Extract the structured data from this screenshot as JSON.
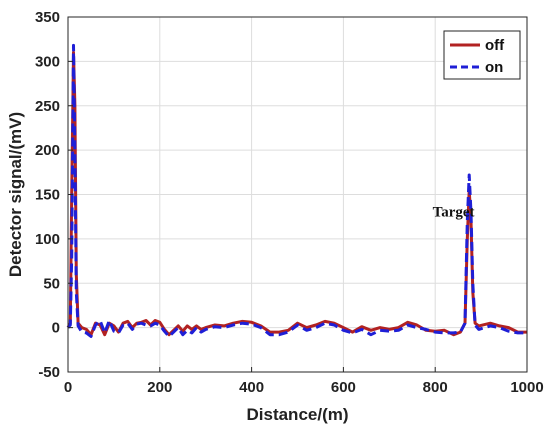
{
  "chart_data": {
    "type": "line",
    "title": "",
    "xlabel": "Distance/(m)",
    "ylabel": "Detector signal/(mV)",
    "xlim": [
      0,
      1000
    ],
    "ylim": [
      -50,
      350
    ],
    "xticks": [
      0,
      200,
      400,
      600,
      800,
      1000
    ],
    "yticks": [
      -50,
      0,
      50,
      100,
      150,
      200,
      250,
      300,
      350
    ],
    "grid": true,
    "legend_position": "top-right",
    "series": [
      {
        "name": "off",
        "color": "#b22222",
        "style": "solid",
        "points": [
          [
            0,
            0
          ],
          [
            5,
            5
          ],
          [
            8,
            150
          ],
          [
            12,
            310
          ],
          [
            15,
            250
          ],
          [
            18,
            60
          ],
          [
            22,
            5
          ],
          [
            30,
            0
          ],
          [
            40,
            -2
          ],
          [
            50,
            -8
          ],
          [
            60,
            5
          ],
          [
            70,
            3
          ],
          [
            80,
            -8
          ],
          [
            90,
            5
          ],
          [
            100,
            2
          ],
          [
            110,
            -5
          ],
          [
            120,
            5
          ],
          [
            130,
            7
          ],
          [
            140,
            0
          ],
          [
            150,
            5
          ],
          [
            160,
            6
          ],
          [
            170,
            8
          ],
          [
            180,
            3
          ],
          [
            190,
            8
          ],
          [
            200,
            6
          ],
          [
            210,
            -2
          ],
          [
            220,
            -8
          ],
          [
            230,
            -3
          ],
          [
            240,
            2
          ],
          [
            250,
            -4
          ],
          [
            260,
            2
          ],
          [
            270,
            -2
          ],
          [
            280,
            2
          ],
          [
            290,
            -2
          ],
          [
            300,
            0
          ],
          [
            320,
            3
          ],
          [
            340,
            2
          ],
          [
            360,
            5
          ],
          [
            380,
            7
          ],
          [
            400,
            6
          ],
          [
            420,
            2
          ],
          [
            440,
            -5
          ],
          [
            460,
            -5
          ],
          [
            480,
            -3
          ],
          [
            500,
            5
          ],
          [
            520,
            0
          ],
          [
            540,
            3
          ],
          [
            560,
            7
          ],
          [
            580,
            5
          ],
          [
            600,
            0
          ],
          [
            620,
            -5
          ],
          [
            640,
            1
          ],
          [
            660,
            -3
          ],
          [
            680,
            0
          ],
          [
            700,
            -2
          ],
          [
            720,
            0
          ],
          [
            740,
            6
          ],
          [
            760,
            3
          ],
          [
            780,
            -3
          ],
          [
            800,
            -4
          ],
          [
            820,
            -3
          ],
          [
            840,
            -8
          ],
          [
            855,
            -5
          ],
          [
            865,
            5
          ],
          [
            870,
            100
          ],
          [
            874,
            155
          ],
          [
            878,
            120
          ],
          [
            882,
            40
          ],
          [
            887,
            5
          ],
          [
            895,
            2
          ],
          [
            920,
            5
          ],
          [
            940,
            2
          ],
          [
            960,
            0
          ],
          [
            980,
            -5
          ],
          [
            1000,
            -5
          ]
        ]
      },
      {
        "name": "on",
        "color": "#1f1fd6",
        "style": "dashed",
        "points": [
          [
            0,
            0
          ],
          [
            5,
            3
          ],
          [
            8,
            80
          ],
          [
            12,
            318
          ],
          [
            15,
            200
          ],
          [
            18,
            40
          ],
          [
            22,
            2
          ],
          [
            30,
            -5
          ],
          [
            40,
            -6
          ],
          [
            50,
            -10
          ],
          [
            60,
            3
          ],
          [
            70,
            8
          ],
          [
            80,
            -6
          ],
          [
            90,
            8
          ],
          [
            100,
            -4
          ],
          [
            110,
            -6
          ],
          [
            120,
            3
          ],
          [
            130,
            5
          ],
          [
            140,
            -2
          ],
          [
            150,
            4
          ],
          [
            160,
            5
          ],
          [
            170,
            3
          ],
          [
            180,
            2
          ],
          [
            190,
            5
          ],
          [
            200,
            3
          ],
          [
            210,
            -4
          ],
          [
            220,
            -10
          ],
          [
            230,
            -5
          ],
          [
            240,
            0
          ],
          [
            250,
            -8
          ],
          [
            260,
            -3
          ],
          [
            270,
            -6
          ],
          [
            280,
            0
          ],
          [
            290,
            -5
          ],
          [
            300,
            -2
          ],
          [
            320,
            1
          ],
          [
            340,
            0
          ],
          [
            360,
            3
          ],
          [
            380,
            5
          ],
          [
            400,
            4
          ],
          [
            420,
            0
          ],
          [
            440,
            -8
          ],
          [
            460,
            -8
          ],
          [
            480,
            -5
          ],
          [
            500,
            3
          ],
          [
            520,
            -3
          ],
          [
            540,
            0
          ],
          [
            560,
            5
          ],
          [
            580,
            3
          ],
          [
            600,
            -3
          ],
          [
            620,
            -6
          ],
          [
            640,
            -2
          ],
          [
            660,
            -8
          ],
          [
            680,
            -3
          ],
          [
            700,
            -4
          ],
          [
            720,
            -3
          ],
          [
            740,
            3
          ],
          [
            760,
            0
          ],
          [
            780,
            -2
          ],
          [
            800,
            -5
          ],
          [
            820,
            -6
          ],
          [
            840,
            -6
          ],
          [
            855,
            -5
          ],
          [
            865,
            5
          ],
          [
            870,
            120
          ],
          [
            874,
            172
          ],
          [
            878,
            130
          ],
          [
            882,
            50
          ],
          [
            887,
            3
          ],
          [
            895,
            -2
          ],
          [
            920,
            2
          ],
          [
            940,
            0
          ],
          [
            960,
            -4
          ],
          [
            980,
            -6
          ],
          [
            1000,
            -6
          ]
        ]
      }
    ],
    "annotations": [
      {
        "text": "Target",
        "x": 840,
        "y": 125
      }
    ]
  }
}
